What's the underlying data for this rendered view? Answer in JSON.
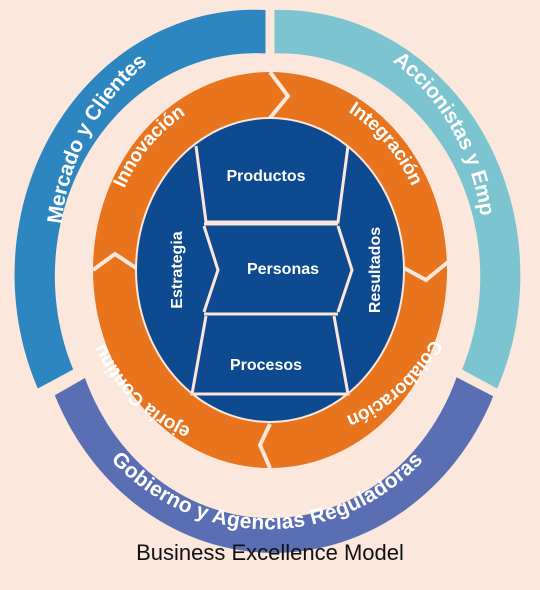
{
  "outer_ring": {
    "top_left": "Mercado y Clientes",
    "top_right": "Accionistas y Emp",
    "bottom": "Gobierno y Agencias Reguladoras"
  },
  "middle_ring": {
    "top_left": "Innovación",
    "top_right": "Integración",
    "bottom_right": "Colaboración",
    "bottom_left": "Mejoría Continua"
  },
  "center": {
    "left": "Estrategia",
    "right": "Resultados",
    "rows": [
      "Productos",
      "Personas",
      "Procesos"
    ]
  },
  "caption": "Business Excellence Model",
  "colors": {
    "background": "#fbe7dc",
    "outer_top_left": "#2e86c1",
    "outer_top_right": "#7cc4cf",
    "outer_bottom": "#5a6fb3",
    "middle": "#e8741e",
    "center": "#0e4a8f",
    "text": "#ffffff"
  }
}
